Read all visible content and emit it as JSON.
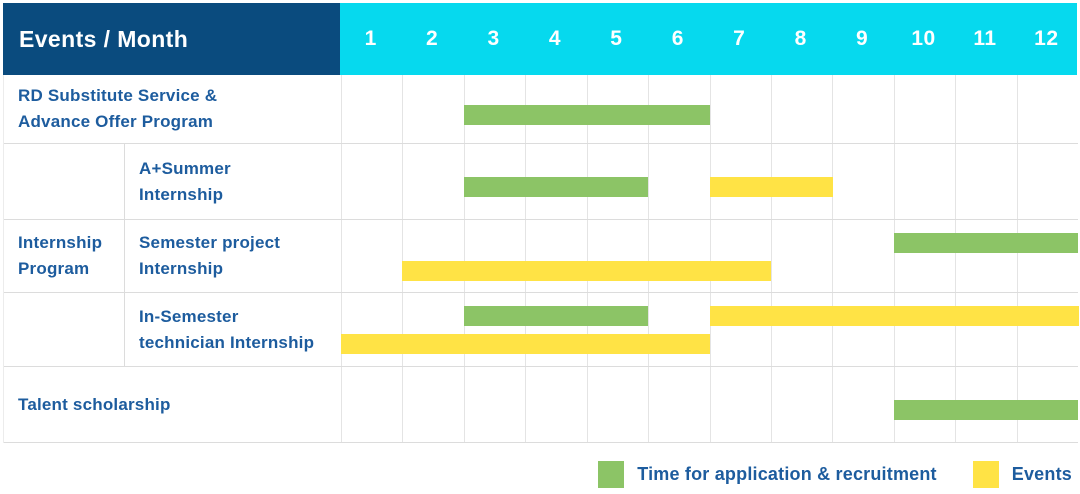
{
  "colors": {
    "navy": "#0a4b7e",
    "cyan": "#06d9ee",
    "green": "#8cc466",
    "yellow": "#ffe345",
    "label_blue": "#1d5c9e",
    "grid_line": "#e4e4e4",
    "row_border": "#dcdcdc"
  },
  "chart_data": {
    "type": "bar",
    "subtype": "gantt-schedule-table",
    "title": "Events / Month",
    "xlabel": "Month",
    "x_ticks": [
      "1",
      "2",
      "3",
      "4",
      "5",
      "6",
      "7",
      "8",
      "9",
      "10",
      "11",
      "12"
    ],
    "x_range": [
      1,
      12
    ],
    "grid": true,
    "legend_position": "bottom-right",
    "legend": [
      {
        "key": "application",
        "label": "Time for application & recruitment",
        "color": "#8cc466"
      },
      {
        "key": "event",
        "label": "Events",
        "color": "#ffe345"
      }
    ],
    "rows": [
      {
        "group": "",
        "label": "RD Substitute Service & Advance Offer Program",
        "label_lines": [
          "RD Substitute Service &",
          "Advance Offer Program"
        ],
        "lines": 1,
        "bars": [
          {
            "kind": "application",
            "start_month": 3,
            "end_month": 6,
            "lane": 0
          }
        ]
      },
      {
        "group": "Internship Program",
        "label": "A+Summer Internship",
        "label_lines": [
          "A+Summer",
          "Internship"
        ],
        "lines": 1,
        "bars": [
          {
            "kind": "application",
            "start_month": 3,
            "end_month": 5,
            "lane": 0
          },
          {
            "kind": "event",
            "start_month": 7,
            "end_month": 8,
            "lane": 0
          }
        ]
      },
      {
        "group": "Internship Program",
        "label": "Semester project Internship",
        "label_lines": [
          "Semester project",
          "Internship"
        ],
        "lines": 2,
        "bars": [
          {
            "kind": "application",
            "start_month": 10,
            "end_month": 12,
            "lane": 0
          },
          {
            "kind": "event",
            "start_month": 2,
            "end_month": 7,
            "lane": 1
          }
        ]
      },
      {
        "group": "Internship Program",
        "label": "In-Semester technician Internship",
        "label_lines": [
          "In-Semester",
          "technician Internship"
        ],
        "lines": 2,
        "bars": [
          {
            "kind": "application",
            "start_month": 3,
            "end_month": 5,
            "lane": 0
          },
          {
            "kind": "event",
            "start_month": 7,
            "end_month": 12,
            "lane": 0
          },
          {
            "kind": "event",
            "start_month": 1,
            "end_month": 6,
            "lane": 1
          }
        ]
      },
      {
        "group": "",
        "label": "Talent scholarship",
        "label_lines": [
          "Talent scholarship"
        ],
        "lines": 1,
        "bars": [
          {
            "kind": "application",
            "start_month": 10,
            "end_month": 12,
            "lane": 0
          }
        ]
      }
    ],
    "group_label": "Internship Program",
    "group_label_lines": [
      "Internship",
      "Program"
    ]
  }
}
